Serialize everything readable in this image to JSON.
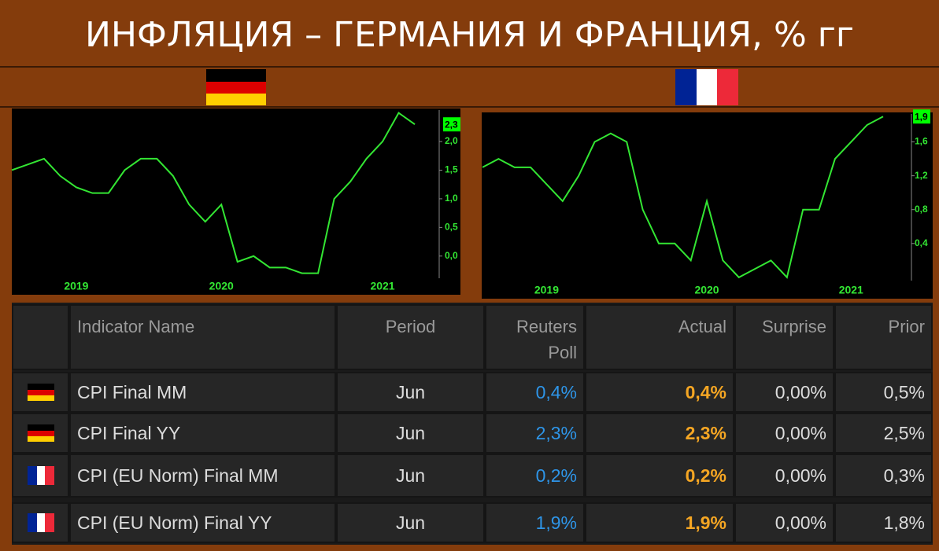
{
  "title": "ИНФЛЯЦИЯ – ГЕРМАНИЯ И ФРАНЦИЯ, % гг",
  "chart_data": [
    {
      "type": "line",
      "color": "#33e633",
      "categories": [
        null,
        null,
        null,
        null,
        "2019",
        null,
        null,
        null,
        null,
        null,
        null,
        null,
        null,
        "2020",
        null,
        null,
        null,
        null,
        null,
        null,
        null,
        null,
        null,
        "2021",
        null,
        null
      ],
      "values": [
        1.5,
        1.6,
        1.7,
        1.4,
        1.2,
        1.1,
        1.1,
        1.5,
        1.7,
        1.7,
        1.4,
        0.9,
        0.6,
        0.9,
        -0.1,
        0.0,
        -0.2,
        -0.2,
        -0.3,
        -0.3,
        1.0,
        1.3,
        1.7,
        2.0,
        2.5,
        2.3
      ],
      "value_labels": [
        null,
        null,
        null,
        null,
        null,
        null,
        null,
        null,
        null,
        null,
        null,
        null,
        null,
        null,
        null,
        null,
        null,
        null,
        null,
        null,
        null,
        null,
        null,
        null,
        null,
        "2,3"
      ],
      "ylim": [
        -0.36,
        2.55
      ],
      "yticks": [
        {
          "value": 0,
          "label": "0,0"
        },
        {
          "value": 0.5,
          "label": "0,5"
        },
        {
          "value": 1,
          "label": "1,0"
        },
        {
          "value": 1.5,
          "label": "1,5"
        },
        {
          "value": 2,
          "label": "2,0"
        }
      ]
    },
    {
      "type": "line",
      "color": "#33e633",
      "categories": [
        null,
        null,
        null,
        null,
        "2019",
        null,
        null,
        null,
        null,
        null,
        null,
        null,
        null,
        null,
        "2020",
        null,
        null,
        null,
        null,
        null,
        null,
        null,
        null,
        "2021",
        null,
        null
      ],
      "values": [
        1.3,
        1.4,
        1.3,
        1.3,
        1.1,
        0.9,
        1.2,
        1.6,
        1.7,
        1.6,
        0.8,
        0.4,
        0.4,
        0.2,
        0.9,
        0.2,
        0.0,
        0.1,
        0.2,
        0.0,
        0.8,
        0.8,
        1.4,
        1.6,
        1.8,
        1.9
      ],
      "value_labels": [
        null,
        null,
        null,
        null,
        null,
        null,
        null,
        null,
        null,
        null,
        null,
        null,
        null,
        null,
        null,
        null,
        null,
        null,
        null,
        null,
        null,
        null,
        null,
        null,
        null,
        "1,9"
      ],
      "ylim": [
        -0.02,
        1.93
      ],
      "yticks": [
        {
          "value": 0.4,
          "label": "0,4"
        },
        {
          "value": 0.8,
          "label": "0,8"
        },
        {
          "value": 1.2,
          "label": "1,2"
        },
        {
          "value": 1.6,
          "label": "1,6"
        }
      ]
    }
  ],
  "table": {
    "header": [
      "Indicator Name",
      "Period",
      "Reuters Poll",
      "Actual",
      "Surprise",
      "Prior"
    ],
    "rows": [
      [
        "CPI Final MM",
        "Jun",
        "0,4%",
        "0,4%",
        "0,00%",
        "0,5%"
      ],
      [
        "CPI Final YY",
        "Jun",
        "2,3%",
        "2,3%",
        "0,00%",
        "2,5%"
      ],
      [
        "CPI (EU Norm) Final MM",
        "Jun",
        "0,2%",
        "0,2%",
        "0,00%",
        "0,3%"
      ],
      [
        "CPI (EU Norm) Final YY",
        "Jun",
        "1,9%",
        "1,9%",
        "0,00%",
        "1,8%"
      ]
    ]
  }
}
